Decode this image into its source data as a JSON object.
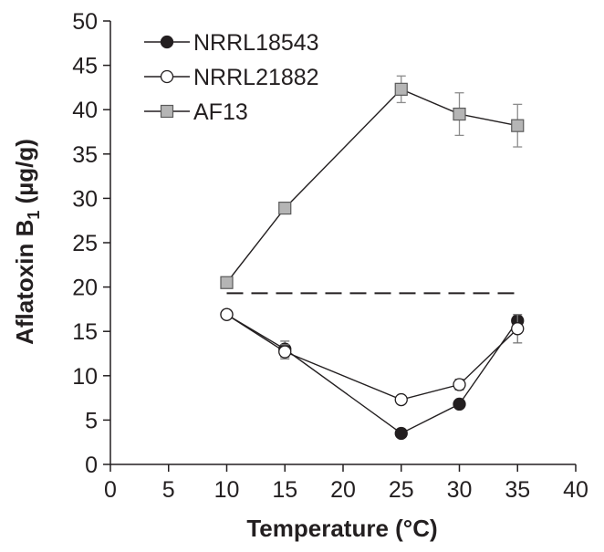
{
  "chart_data": {
    "type": "line",
    "title": "",
    "xlabel": "Temperature (°C)",
    "ylabel_main": "Aflatoxin B",
    "ylabel_sub": "1",
    "ylabel_unit": " (µg/g)",
    "xlim": [
      0,
      40
    ],
    "ylim": [
      0,
      50
    ],
    "x_ticks": [
      "0",
      "5",
      "10",
      "15",
      "20",
      "25",
      "30",
      "35",
      "40"
    ],
    "y_ticks": [
      "0",
      "5",
      "10",
      "15",
      "20",
      "25",
      "30",
      "35",
      "40",
      "45",
      "50"
    ],
    "grid": false,
    "legend_position": "top-left",
    "series": [
      {
        "name": "NRRL18543",
        "marker": "filled-circle",
        "color": "#231f20",
        "x": [
          10,
          15,
          25,
          30,
          35
        ],
        "y": [
          16.9,
          13.0,
          3.5,
          6.8,
          16.2
        ],
        "err": [
          0.3,
          0.9,
          0.3,
          0.3,
          0.5
        ]
      },
      {
        "name": "NRRL21882",
        "marker": "open-circle",
        "color": "#231f20",
        "x": [
          10,
          15,
          25,
          30,
          35
        ],
        "y": [
          16.9,
          12.7,
          7.3,
          9.0,
          15.3
        ],
        "err": [
          0.3,
          0.8,
          0.3,
          0.6,
          1.6
        ]
      },
      {
        "name": "AF13",
        "marker": "gray-square",
        "color": "#b5b5b5",
        "x": [
          10,
          15,
          25,
          30,
          35
        ],
        "y": [
          20.5,
          28.9,
          42.3,
          39.5,
          38.2
        ],
        "err": [
          0.3,
          0.3,
          1.5,
          2.4,
          2.4
        ]
      }
    ],
    "reference_line": {
      "y": 19.3,
      "x": [
        10,
        35
      ],
      "style": "dashed"
    }
  }
}
